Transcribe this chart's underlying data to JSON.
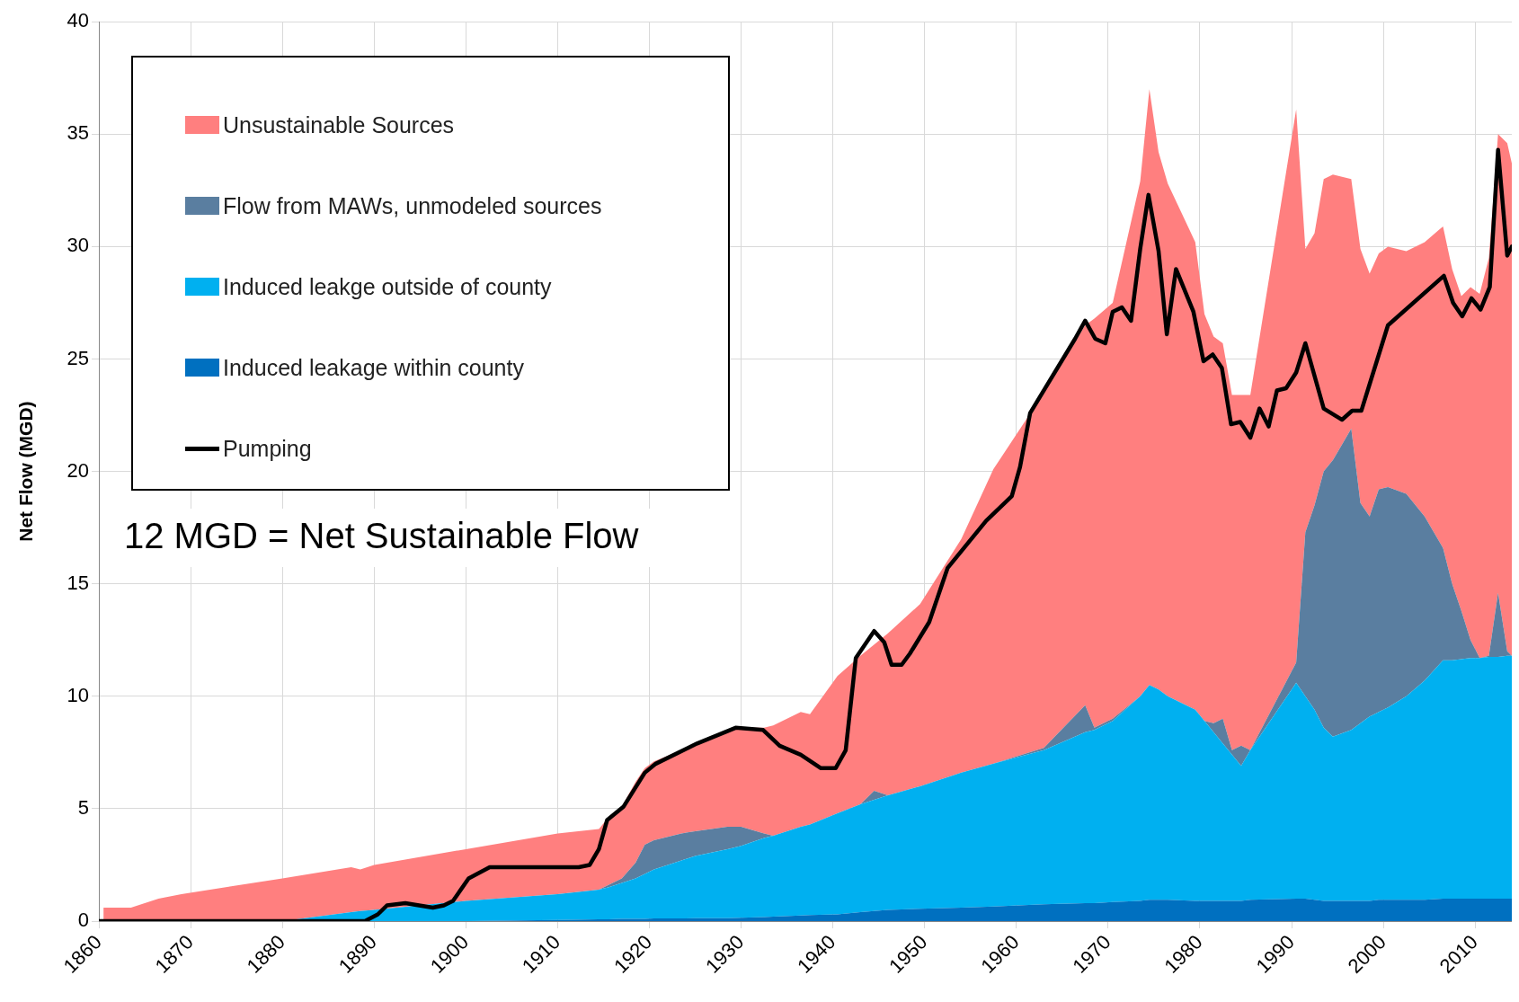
{
  "chart_data": {
    "type": "area",
    "stacked": true,
    "ylabel": "Net Flow (MGD)",
    "xlim": [
      1860,
      2014
    ],
    "xticks": [
      1860,
      1870,
      1880,
      1890,
      1900,
      1910,
      1920,
      1930,
      1940,
      1950,
      1960,
      1970,
      1980,
      1990,
      2000,
      2010
    ],
    "ylim": [
      0,
      40
    ],
    "yticks": [
      0,
      5,
      10,
      15,
      20,
      25,
      30,
      35,
      40
    ],
    "grid": true,
    "legend": "top left",
    "line_style": "solid",
    "annotations": [
      "12 MGD = Net Sustainable Flow"
    ],
    "x": [
      1860.5,
      1863.5,
      1866.5,
      1869,
      1880,
      1887.5,
      1888.5,
      1890,
      1900,
      1910,
      1914.5,
      1915.5,
      1917,
      1918.5,
      1919.5,
      1920.5,
      1923.5,
      1925,
      1928.5,
      1930,
      1932.5,
      1933.5,
      1936.5,
      1937.5,
      1940.5,
      1943,
      1944.5,
      1946,
      1949.5,
      1954,
      1957.5,
      1963,
      1967.5,
      1968.5,
      1970.5,
      1973.5,
      1974.5,
      1975.5,
      1976.5,
      1979.5,
      1980.5,
      1981.5,
      1982.5,
      1983.5,
      1984.5,
      1985.5,
      1990.5,
      1991.5,
      1992.5,
      1993.5,
      1994.5,
      1996.5,
      1997.5,
      1998.5,
      1999.5,
      2000.5,
      2002.5,
      2004.5,
      2006.5,
      2007.5,
      2008.5,
      2009.5,
      2010.5,
      2011.5,
      2012.5,
      2013.5,
      2014
    ],
    "series": [
      {
        "name": "Induced leakage within county",
        "color": "#0070c0",
        "values": [
          0,
          0,
          0,
          0,
          0,
          0,
          0,
          0,
          0,
          0.05,
          0.08,
          0.08,
          0.1,
          0.1,
          0.1,
          0.12,
          0.12,
          0.13,
          0.13,
          0.15,
          0.18,
          0.2,
          0.25,
          0.27,
          0.3,
          0.4,
          0.45,
          0.5,
          0.55,
          0.6,
          0.65,
          0.75,
          0.8,
          0.8,
          0.85,
          0.9,
          0.95,
          0.95,
          0.95,
          0.9,
          0.9,
          0.9,
          0.9,
          0.9,
          0.9,
          0.95,
          1.0,
          1.0,
          0.95,
          0.9,
          0.9,
          0.9,
          0.9,
          0.9,
          0.95,
          0.95,
          0.95,
          0.95,
          1.0,
          1.0,
          1.0,
          1.0,
          1.0,
          1.0,
          1.0,
          1.0,
          1.0
        ]
      },
      {
        "name": "Induced leakge outside of county",
        "color": "#00b0f0",
        "values": [
          0,
          0,
          0,
          0,
          0,
          0.4,
          0.45,
          0.5,
          0.9,
          1.15,
          1.32,
          1.42,
          1.6,
          1.8,
          2.0,
          2.18,
          2.58,
          2.77,
          3.07,
          3.2,
          3.52,
          3.6,
          3.95,
          4.03,
          4.5,
          4.8,
          4.95,
          5.1,
          5.45,
          6.0,
          6.35,
          6.85,
          7.6,
          7.7,
          8.05,
          9.1,
          9.55,
          9.35,
          9.05,
          8.5,
          8.0,
          7.5,
          7.0,
          6.5,
          6.0,
          6.65,
          9.6,
          9.0,
          8.45,
          7.7,
          7.3,
          7.6,
          7.9,
          8.2,
          8.35,
          8.55,
          9.05,
          9.75,
          10.6,
          10.6,
          10.65,
          10.7,
          10.7,
          10.75,
          10.75,
          10.8,
          10.8
        ]
      },
      {
        "name": "Flow from MAWs, unmodeled sources",
        "color": "#5a7ea0",
        "values": [
          0,
          0,
          0,
          0,
          0,
          0,
          0,
          0,
          0,
          0,
          0,
          0.1,
          0.2,
          0.7,
          1.3,
          1.3,
          1.2,
          1.1,
          1.0,
          0.85,
          0.2,
          0,
          0,
          0,
          0,
          0,
          0.4,
          0,
          0,
          0,
          0,
          0.1,
          1.2,
          0.1,
          0.1,
          0,
          0,
          0,
          0,
          0,
          0,
          0.4,
          1.1,
          0.2,
          0.9,
          0,
          0.9,
          7.3,
          9.1,
          11.4,
          12.3,
          13.4,
          9.8,
          8.9,
          9.9,
          9.8,
          9.0,
          7.3,
          5.0,
          3.4,
          2.15,
          0.8,
          0,
          0.05,
          2.85,
          0.2,
          0
        ]
      },
      {
        "name": "Unsustainable Sources",
        "color": "#ff7f7f",
        "values": [
          0.6,
          0.6,
          1.0,
          1.2,
          1.9,
          2.0,
          1.85,
          2.0,
          2.3,
          2.7,
          2.7,
          3.0,
          3.2,
          3.6,
          3.4,
          3.5,
          3.7,
          3.9,
          4.3,
          4.4,
          4.7,
          4.9,
          5.1,
          4.9,
          6.1,
          6.6,
          6.5,
          7.2,
          8.1,
          10.4,
          13.1,
          15.8,
          16.9,
          18.2,
          18.5,
          22.9,
          26.5,
          23.9,
          22.8,
          20.8,
          18.1,
          17.2,
          16.7,
          15.8,
          15.6,
          15.8,
          24.6,
          12.6,
          12.1,
          13.0,
          12.7,
          11.1,
          11.3,
          10.8,
          10.5,
          10.7,
          10.8,
          12.2,
          14.3,
          14.0,
          14.0,
          15.7,
          16.2,
          17.7,
          20.4,
          22.6,
          21.9
        ]
      },
      {
        "name": "Pumping",
        "type": "line",
        "color": "#000000",
        "x": [
          1860,
          1889,
          1890.4,
          1891.4,
          1893.4,
          1896.4,
          1897.6,
          1898.6,
          1900.3,
          1902.6,
          1912.3,
          1913.5,
          1914.5,
          1915.4,
          1917.2,
          1919.5,
          1920.7,
          1925.2,
          1929.4,
          1932.4,
          1934.2,
          1936.5,
          1938.7,
          1940.3,
          1941.4,
          1942.5,
          1944.5,
          1945.6,
          1946.4,
          1947.5,
          1948.4,
          1950.5,
          1952.5,
          1956.7,
          1959.5,
          1960.4,
          1961.5,
          1966.4,
          1967.5,
          1968.6,
          1969.7,
          1970.5,
          1971.5,
          1972.5,
          1973.5,
          1974.4,
          1975.5,
          1976.4,
          1977.4,
          1979.3,
          1980.4,
          1981.4,
          1982.4,
          1983.4,
          1984.4,
          1985.5,
          1986.5,
          1987.5,
          1988.4,
          1989.4,
          1990.5,
          1991.5,
          1993.5,
          1995.5,
          1996.6,
          1997.6,
          2000.5,
          2006.6,
          2007.6,
          2008.6,
          2009.6,
          2010.6,
          2011.6,
          2012.5,
          2013.5,
          2014
        ],
        "values": [
          0,
          0,
          0.3,
          0.7,
          0.8,
          0.6,
          0.7,
          0.9,
          1.9,
          2.4,
          2.4,
          2.5,
          3.2,
          4.5,
          5.1,
          6.6,
          7.0,
          7.9,
          8.6,
          8.5,
          7.8,
          7.4,
          6.8,
          6.8,
          7.6,
          11.7,
          12.9,
          12.4,
          11.4,
          11.4,
          11.9,
          13.3,
          15.7,
          17.8,
          18.9,
          20.2,
          22.6,
          25.9,
          26.7,
          25.9,
          25.7,
          27.1,
          27.3,
          26.7,
          29.9,
          32.3,
          29.8,
          26.1,
          29.0,
          27.1,
          24.9,
          25.2,
          24.6,
          22.1,
          22.2,
          21.5,
          22.8,
          22.0,
          23.6,
          23.7,
          24.4,
          25.7,
          22.8,
          22.3,
          22.7,
          22.7,
          26.5,
          28.7,
          27.5,
          26.9,
          27.7,
          27.2,
          28.2,
          34.3,
          29.6,
          30.0
        ]
      }
    ]
  }
}
